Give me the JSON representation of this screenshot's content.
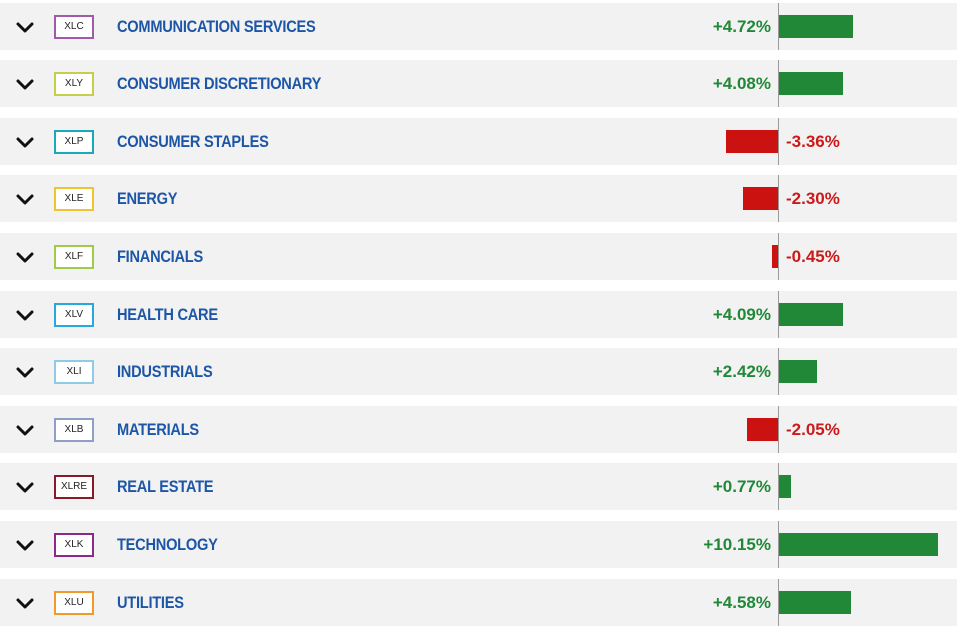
{
  "sectors": [
    {
      "ticker": "XLC",
      "name": "COMMUNICATION SERVICES",
      "change_label": "+4.72%",
      "change": 4.72,
      "badge_color": "#a05aa8"
    },
    {
      "ticker": "XLY",
      "name": "CONSUMER DISCRETIONARY",
      "change_label": "+4.08%",
      "change": 4.08,
      "badge_color": "#c6cf4a"
    },
    {
      "ticker": "XLP",
      "name": "CONSUMER STAPLES",
      "change_label": "-3.36%",
      "change": -3.36,
      "badge_color": "#1aa9b8"
    },
    {
      "ticker": "XLE",
      "name": "ENERGY",
      "change_label": "-2.30%",
      "change": -2.3,
      "badge_color": "#f2c230"
    },
    {
      "ticker": "XLF",
      "name": "FINANCIALS",
      "change_label": "-0.45%",
      "change": -0.45,
      "badge_color": "#9ecb4a"
    },
    {
      "ticker": "XLV",
      "name": "HEALTH CARE",
      "change_label": "+4.09%",
      "change": 4.09,
      "badge_color": "#2aa7dd"
    },
    {
      "ticker": "XLI",
      "name": "INDUSTRIALS",
      "change_label": "+2.42%",
      "change": 2.42,
      "badge_color": "#8fcbe8"
    },
    {
      "ticker": "XLB",
      "name": "MATERIALS",
      "change_label": "-2.05%",
      "change": -2.05,
      "badge_color": "#8f9fc8"
    },
    {
      "ticker": "XLRE",
      "name": "REAL ESTATE",
      "change_label": "+0.77%",
      "change": 0.77,
      "badge_color": "#8a1a2a"
    },
    {
      "ticker": "XLK",
      "name": "TECHNOLOGY",
      "change_label": "+10.15%",
      "change": 10.15,
      "badge_color": "#8a2a8a"
    },
    {
      "ticker": "XLU",
      "name": "UTILITIES",
      "change_label": "+4.58%",
      "change": 4.58,
      "badge_color": "#f09a2a"
    }
  ],
  "colors": {
    "positive": "#218838",
    "negative": "#cc1111",
    "name": "#1d56a6",
    "row_bg": "#f2f2f2"
  },
  "icons": {
    "expand": "chevron-down-icon"
  }
}
